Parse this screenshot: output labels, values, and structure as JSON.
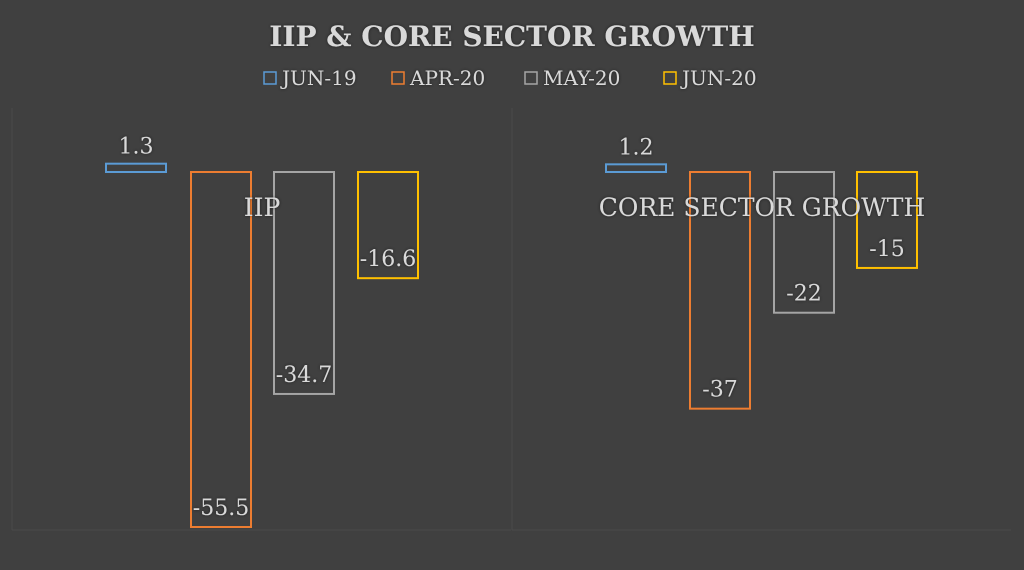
{
  "chart_data": {
    "type": "bar",
    "title": "IIP & CORE SECTOR GROWTH",
    "categories": [
      "IIP",
      "CORE SECTOR GROWTH"
    ],
    "series": [
      {
        "name": "JUN-19",
        "values": [
          1.3,
          1.2
        ],
        "color": "#5b9bd5"
      },
      {
        "name": "APR-20",
        "values": [
          -55.5,
          -37
        ],
        "color": "#ed7d31"
      },
      {
        "name": "MAY-20",
        "values": [
          -34.7,
          -22
        ],
        "color": "#a5a5a5"
      },
      {
        "name": "JUN-20",
        "values": [
          -16.6,
          -15
        ],
        "color": "#ffc000"
      }
    ],
    "data_labels": [
      [
        "1.3",
        "1.2"
      ],
      [
        "-55.5",
        "-37"
      ],
      [
        "-34.7",
        "-22"
      ],
      [
        "-16.6",
        "-15"
      ]
    ],
    "ylim": [
      -60,
      2
    ],
    "legend_position": "top",
    "grid": false,
    "text_color": "#d9d9d9",
    "background_color": "#404040"
  }
}
